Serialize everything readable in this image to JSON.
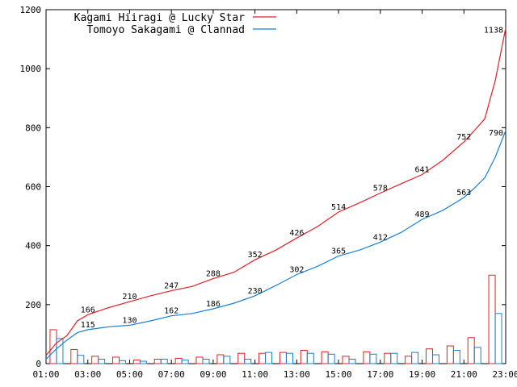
{
  "chart_data": {
    "type": "line",
    "xlim": [
      "01:00",
      "23:00"
    ],
    "ylim": [
      0,
      1200
    ],
    "yticks": [
      0,
      200,
      400,
      600,
      800,
      1000,
      1200
    ],
    "xticks": [
      "01:00",
      "03:00",
      "05:00",
      "07:00",
      "09:00",
      "11:00",
      "13:00",
      "15:00",
      "17:00",
      "19:00",
      "21:00",
      "23:00"
    ],
    "grid": false,
    "legend_position": "top-left",
    "series": [
      {
        "name": "Kagami Hiiragi @ Lucky Star",
        "color": "#e0202a",
        "cumulative": [
          {
            "x": "01:00",
            "y": 28
          },
          {
            "x": "01:30",
            "y": 70
          },
          {
            "x": "02:00",
            "y": 95
          },
          {
            "x": "02:30",
            "y": 145
          },
          {
            "x": "03:00",
            "y": 166
          },
          {
            "x": "04:00",
            "y": 190
          },
          {
            "x": "05:00",
            "y": 210
          },
          {
            "x": "06:00",
            "y": 230
          },
          {
            "x": "07:00",
            "y": 247
          },
          {
            "x": "08:00",
            "y": 262
          },
          {
            "x": "09:00",
            "y": 288
          },
          {
            "x": "10:00",
            "y": 310
          },
          {
            "x": "11:00",
            "y": 352
          },
          {
            "x": "12:00",
            "y": 385
          },
          {
            "x": "13:00",
            "y": 426
          },
          {
            "x": "14:00",
            "y": 465
          },
          {
            "x": "15:00",
            "y": 514
          },
          {
            "x": "16:00",
            "y": 545
          },
          {
            "x": "17:00",
            "y": 578
          },
          {
            "x": "18:00",
            "y": 610
          },
          {
            "x": "19:00",
            "y": 641
          },
          {
            "x": "20:00",
            "y": 690
          },
          {
            "x": "21:00",
            "y": 752
          },
          {
            "x": "21:30",
            "y": 790
          },
          {
            "x": "22:00",
            "y": 830
          },
          {
            "x": "22:30",
            "y": 960
          },
          {
            "x": "23:00",
            "y": 1138
          }
        ],
        "hourly": [
          115,
          48,
          25,
          22,
          12,
          15,
          18,
          22,
          30,
          35,
          35,
          38,
          45,
          40,
          25,
          40,
          35,
          25,
          50,
          60,
          88,
          300
        ]
      },
      {
        "name": "Tomoyo Sakagami @ Clannad",
        "color": "#1a7fd0",
        "cumulative": [
          {
            "x": "01:00",
            "y": 15
          },
          {
            "x": "01:30",
            "y": 50
          },
          {
            "x": "02:00",
            "y": 80
          },
          {
            "x": "02:30",
            "y": 105
          },
          {
            "x": "03:00",
            "y": 115
          },
          {
            "x": "04:00",
            "y": 125
          },
          {
            "x": "05:00",
            "y": 130
          },
          {
            "x": "06:00",
            "y": 145
          },
          {
            "x": "07:00",
            "y": 162
          },
          {
            "x": "08:00",
            "y": 170
          },
          {
            "x": "09:00",
            "y": 186
          },
          {
            "x": "10:00",
            "y": 205
          },
          {
            "x": "11:00",
            "y": 230
          },
          {
            "x": "12:00",
            "y": 265
          },
          {
            "x": "13:00",
            "y": 302
          },
          {
            "x": "14:00",
            "y": 330
          },
          {
            "x": "15:00",
            "y": 365
          },
          {
            "x": "16:00",
            "y": 385
          },
          {
            "x": "17:00",
            "y": 412
          },
          {
            "x": "18:00",
            "y": 445
          },
          {
            "x": "19:00",
            "y": 489
          },
          {
            "x": "20:00",
            "y": 520
          },
          {
            "x": "21:00",
            "y": 563
          },
          {
            "x": "21:30",
            "y": 595
          },
          {
            "x": "22:00",
            "y": 630
          },
          {
            "x": "22:30",
            "y": 700
          },
          {
            "x": "23:00",
            "y": 790
          }
        ],
        "hourly": [
          85,
          28,
          15,
          10,
          8,
          15,
          12,
          15,
          25,
          15,
          38,
          35,
          35,
          32,
          15,
          32,
          35,
          38,
          30,
          45,
          55,
          170
        ]
      }
    ],
    "data_labels": [
      {
        "series": 0,
        "x": "03:00",
        "y": 166,
        "text": "166"
      },
      {
        "series": 0,
        "x": "05:00",
        "y": 210,
        "text": "210"
      },
      {
        "series": 0,
        "x": "07:00",
        "y": 247,
        "text": "247"
      },
      {
        "series": 0,
        "x": "09:00",
        "y": 288,
        "text": "288"
      },
      {
        "series": 0,
        "x": "11:00",
        "y": 352,
        "text": "352"
      },
      {
        "series": 0,
        "x": "13:00",
        "y": 426,
        "text": "426"
      },
      {
        "series": 0,
        "x": "15:00",
        "y": 514,
        "text": "514"
      },
      {
        "series": 0,
        "x": "17:00",
        "y": 578,
        "text": "578"
      },
      {
        "series": 0,
        "x": "19:00",
        "y": 641,
        "text": "641"
      },
      {
        "series": 0,
        "x": "21:00",
        "y": 752,
        "text": "752"
      },
      {
        "series": 0,
        "x": "23:00",
        "y": 1138,
        "text": "1138"
      },
      {
        "series": 1,
        "x": "03:00",
        "y": 115,
        "text": "115"
      },
      {
        "series": 1,
        "x": "05:00",
        "y": 130,
        "text": "130"
      },
      {
        "series": 1,
        "x": "07:00",
        "y": 162,
        "text": "162"
      },
      {
        "series": 1,
        "x": "09:00",
        "y": 186,
        "text": "186"
      },
      {
        "series": 1,
        "x": "11:00",
        "y": 230,
        "text": "230"
      },
      {
        "series": 1,
        "x": "13:00",
        "y": 302,
        "text": "302"
      },
      {
        "series": 1,
        "x": "15:00",
        "y": 365,
        "text": "365"
      },
      {
        "series": 1,
        "x": "17:00",
        "y": 412,
        "text": "412"
      },
      {
        "series": 1,
        "x": "19:00",
        "y": 489,
        "text": "489"
      },
      {
        "series": 1,
        "x": "21:00",
        "y": 563,
        "text": "563"
      },
      {
        "series": 1,
        "x": "23:00",
        "y": 790,
        "text": "790"
      }
    ]
  }
}
